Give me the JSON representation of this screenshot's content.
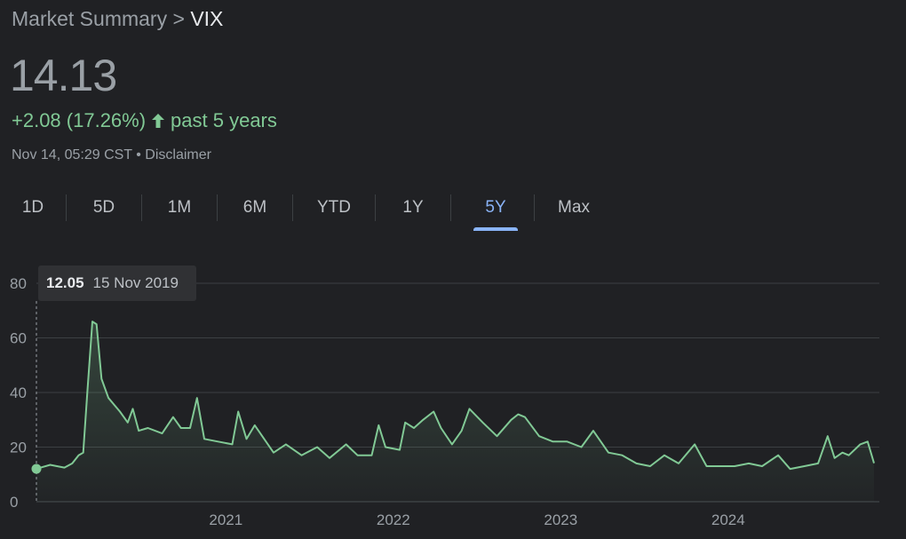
{
  "header": {
    "breadcrumb_parent": "Market Summary",
    "breadcrumb_sep": ">",
    "breadcrumb_current": "VIX"
  },
  "quote": {
    "price": "14.13",
    "change_text": "+2.08 (17.26%)",
    "period_text": "past 5 years",
    "timestamp": "Nov 14, 05:29 CST",
    "separator": "•",
    "disclaimer": "Disclaimer"
  },
  "tabs": [
    {
      "label": "1D"
    },
    {
      "label": "5D"
    },
    {
      "label": "1M"
    },
    {
      "label": "6M"
    },
    {
      "label": "YTD"
    },
    {
      "label": "1Y"
    },
    {
      "label": "5Y",
      "active": true
    },
    {
      "label": "Max"
    }
  ],
  "tooltip": {
    "value": "12.05",
    "date": "15 Nov 2019"
  },
  "colors": {
    "positive": "#81c995",
    "accent": "#8ab4f8",
    "background": "#202124",
    "grid": "#3c4043"
  },
  "chart_data": {
    "type": "area",
    "y_ticks": [
      0,
      20,
      40,
      60,
      80
    ],
    "ylim": [
      0,
      80
    ],
    "xlim": [
      "2019-11-15",
      "2024-11-14"
    ],
    "x_ticks": [
      {
        "date": "2021-01-01",
        "label": "2021"
      },
      {
        "date": "2022-01-01",
        "label": "2022"
      },
      {
        "date": "2023-01-01",
        "label": "2023"
      },
      {
        "date": "2024-01-01",
        "label": "2024"
      }
    ],
    "grid": true,
    "series": [
      {
        "x": [
          "2019-11-15",
          "2019-12-15",
          "2020-01-15",
          "2020-02-01",
          "2020-02-15",
          "2020-02-25",
          "2020-03-05",
          "2020-03-16",
          "2020-03-25",
          "2020-04-05",
          "2020-04-20",
          "2020-05-15",
          "2020-06-01",
          "2020-06-12",
          "2020-06-25",
          "2020-07-15",
          "2020-08-15",
          "2020-09-08",
          "2020-09-25",
          "2020-10-15",
          "2020-10-30",
          "2020-11-15",
          "2020-12-15",
          "2021-01-15",
          "2021-01-28",
          "2021-02-15",
          "2021-03-05",
          "2021-04-15",
          "2021-05-12",
          "2021-06-15",
          "2021-07-19",
          "2021-08-15",
          "2021-09-20",
          "2021-10-15",
          "2021-11-15",
          "2021-11-30",
          "2021-12-15",
          "2022-01-15",
          "2022-01-27",
          "2022-02-15",
          "2022-03-07",
          "2022-03-30",
          "2022-04-15",
          "2022-05-09",
          "2022-05-30",
          "2022-06-16",
          "2022-07-15",
          "2022-08-15",
          "2022-09-15",
          "2022-09-30",
          "2022-10-15",
          "2022-11-15",
          "2022-12-15",
          "2023-01-15",
          "2023-02-15",
          "2023-03-13",
          "2023-04-15",
          "2023-05-15",
          "2023-06-15",
          "2023-07-15",
          "2023-08-15",
          "2023-09-15",
          "2023-10-20",
          "2023-11-15",
          "2023-12-15",
          "2024-01-15",
          "2024-02-15",
          "2024-03-15",
          "2024-04-19",
          "2024-05-15",
          "2024-06-15",
          "2024-07-15",
          "2024-08-05",
          "2024-08-20",
          "2024-09-06",
          "2024-09-20",
          "2024-10-15",
          "2024-10-31",
          "2024-11-14"
        ],
        "y": [
          12.05,
          13.5,
          12.5,
          14,
          17,
          18,
          40,
          66,
          65,
          45,
          38,
          33,
          29,
          34,
          26,
          27,
          25,
          31,
          27,
          27,
          38,
          23,
          22,
          21,
          33,
          23,
          28,
          18,
          21,
          17,
          20,
          16,
          21,
          17,
          17,
          28,
          20,
          19,
          29,
          27,
          30,
          33,
          27,
          21,
          26,
          34,
          29,
          24,
          30,
          32,
          31,
          24,
          22,
          22,
          20,
          26,
          18,
          17,
          14,
          13,
          17,
          14,
          21,
          13,
          13,
          13,
          14,
          13,
          17,
          12,
          13,
          14,
          24,
          16,
          18,
          17,
          21,
          22,
          14.13
        ]
      }
    ]
  }
}
